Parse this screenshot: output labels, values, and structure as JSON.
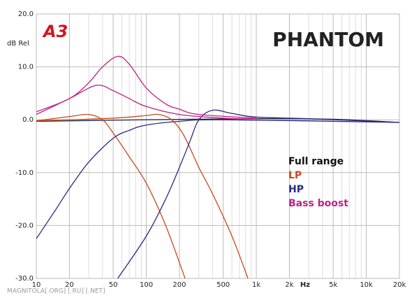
{
  "chart_data": {
    "type": "line",
    "logo": "A3",
    "title": "PHANTOM",
    "ylabel": "dB Rel",
    "xlabel": "Hz",
    "watermark": "MAGNITOLA[.ORG] [.RU] [.NET]",
    "xscale": "log",
    "grid": true,
    "xlim": [
      10,
      20000
    ],
    "ylim": [
      -30,
      20
    ],
    "xticks": [
      10,
      20,
      50,
      100,
      200,
      500,
      {
        "value": 1000,
        "label": "1k"
      },
      {
        "value": 2000,
        "label": "2k"
      },
      {
        "value": 5000,
        "label": "5k"
      },
      {
        "value": 10000,
        "label": "10k"
      },
      {
        "value": 20000,
        "label": "20k"
      }
    ],
    "xminor": [
      30,
      40,
      60,
      70,
      80,
      90,
      300,
      400,
      600,
      700,
      800,
      900,
      3000,
      4000,
      6000,
      7000,
      8000,
      9000
    ],
    "yticks": [
      {
        "value": 20,
        "label": "20.0"
      },
      {
        "value": 10,
        "label": "10.0"
      },
      {
        "value": 0,
        "label": "0.0"
      },
      {
        "value": -10,
        "label": "-10.0"
      },
      {
        "value": -20,
        "label": "-20.0"
      },
      {
        "value": -30,
        "label": "-30.0"
      }
    ],
    "series": [
      {
        "name": "Full range",
        "color": "#2a2a4a",
        "curves": [
          {
            "x": [
              10,
              100,
              1000,
              5000,
              20000
            ],
            "values": [
              -0.3,
              0,
              0.2,
              0.1,
              -0.5
            ]
          }
        ]
      },
      {
        "name": "LP",
        "color": "#c64a1e",
        "curves": [
          {
            "x": [
              10,
              20,
              30,
              40,
              50,
              70,
              100,
              150,
              225
            ],
            "values": [
              -0.2,
              0.6,
              1,
              0,
              -2.5,
              -7,
              -12,
              -20,
              -30
            ]
          },
          {
            "x": [
              10,
              50,
              100,
              130,
              170,
              220,
              300,
              400,
              600,
              840
            ],
            "values": [
              -0.2,
              0.3,
              0.8,
              1,
              0,
              -3,
              -9,
              -14,
              -22,
              -30
            ]
          }
        ]
      },
      {
        "name": "HP",
        "color": "#2a2a80",
        "curves": [
          {
            "x": [
              10,
              15,
              20,
              30,
              50,
              70,
              100,
              200,
              500,
              20000
            ],
            "values": [
              -22.5,
              -17,
              -13,
              -8,
              -3.5,
              -2,
              -1,
              -0.3,
              0,
              -0.5
            ]
          },
          {
            "x": [
              55,
              100,
              150,
              200,
              250,
              300,
              400,
              600,
              1000,
              3000,
              20000
            ],
            "values": [
              -30,
              -22,
              -15,
              -9,
              -4,
              0,
              1.8,
              1.2,
              0.5,
              0.2,
              -0.5
            ]
          }
        ]
      },
      {
        "name": "Bass boost",
        "color": "#c0208a",
        "curves": [
          {
            "x": [
              10,
              20,
              30,
              40,
              55,
              70,
              100,
              150,
              200,
              300,
              1000
            ],
            "values": [
              1.5,
              4,
              7,
              10,
              12,
              10.5,
              6,
              3,
              2,
              1,
              0.3
            ]
          },
          {
            "x": [
              10,
              20,
              35,
              50,
              70,
              100,
              200,
              500,
              1000
            ],
            "values": [
              1,
              4,
              6.5,
              5.5,
              4,
              2.5,
              1,
              0.3,
              0.2
            ]
          }
        ]
      }
    ]
  }
}
